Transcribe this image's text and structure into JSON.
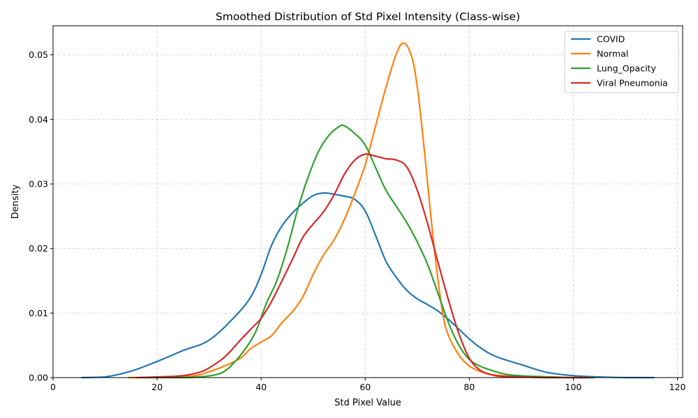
{
  "chart_data": {
    "type": "line",
    "title": "Smoothed Distribution of Std Pixel Intensity (Class-wise)",
    "xlabel": "Std Pixel Value",
    "ylabel": "Density",
    "xlim": [
      0,
      121
    ],
    "ylim": [
      0,
      0.0545
    ],
    "xticks": [
      0,
      20,
      40,
      60,
      80,
      100,
      120
    ],
    "xtick_labels": [
      "0",
      "20",
      "40",
      "60",
      "80",
      "100",
      "120"
    ],
    "yticks": [
      0,
      0.01,
      0.02,
      0.03,
      0.04,
      0.05
    ],
    "ytick_labels": [
      "0.00",
      "0.01",
      "0.02",
      "0.03",
      "0.04",
      "0.05"
    ],
    "grid": true,
    "legend_position": "top-right",
    "series": [
      {
        "name": "COVID",
        "color": "#1f77b4",
        "points": [
          [
            5.5,
            0
          ],
          [
            10,
            0.0001
          ],
          [
            15,
            0.001
          ],
          [
            20,
            0.0025
          ],
          [
            25,
            0.0042
          ],
          [
            30,
            0.0058
          ],
          [
            35,
            0.0095
          ],
          [
            38,
            0.0125
          ],
          [
            40,
            0.016
          ],
          [
            42,
            0.0205
          ],
          [
            44,
            0.0235
          ],
          [
            46,
            0.0255
          ],
          [
            48,
            0.027
          ],
          [
            50,
            0.0282
          ],
          [
            52,
            0.0286
          ],
          [
            54,
            0.0284
          ],
          [
            56,
            0.0281
          ],
          [
            58,
            0.0276
          ],
          [
            60,
            0.0258
          ],
          [
            62,
            0.022
          ],
          [
            64,
            0.018
          ],
          [
            66,
            0.0155
          ],
          [
            68,
            0.0135
          ],
          [
            70,
            0.0122
          ],
          [
            72,
            0.0113
          ],
          [
            74,
            0.0103
          ],
          [
            76,
            0.009
          ],
          [
            78,
            0.0075
          ],
          [
            80,
            0.006
          ],
          [
            82,
            0.0047
          ],
          [
            85,
            0.0033
          ],
          [
            90,
            0.002
          ],
          [
            95,
            0.0008
          ],
          [
            100,
            0.0003
          ],
          [
            105,
            0.0001
          ],
          [
            110,
            0
          ],
          [
            115.5,
            0
          ]
        ]
      },
      {
        "name": "Normal",
        "color": "#ff7f0e",
        "points": [
          [
            14.5,
            0
          ],
          [
            20,
            0
          ],
          [
            25,
            0.0001
          ],
          [
            28,
            0.0004
          ],
          [
            30,
            0.0009
          ],
          [
            33,
            0.0018
          ],
          [
            36,
            0.003
          ],
          [
            38,
            0.0045
          ],
          [
            40,
            0.0055
          ],
          [
            42,
            0.0065
          ],
          [
            44,
            0.0085
          ],
          [
            46,
            0.0102
          ],
          [
            48,
            0.0125
          ],
          [
            50,
            0.016
          ],
          [
            52,
            0.019
          ],
          [
            54,
            0.0213
          ],
          [
            56,
            0.0245
          ],
          [
            58,
            0.0285
          ],
          [
            60,
            0.033
          ],
          [
            62,
            0.039
          ],
          [
            64,
            0.045
          ],
          [
            66,
            0.0502
          ],
          [
            67.5,
            0.0518
          ],
          [
            69,
            0.0495
          ],
          [
            70,
            0.045
          ],
          [
            71,
            0.038
          ],
          [
            72,
            0.03
          ],
          [
            73,
            0.022
          ],
          [
            74,
            0.015
          ],
          [
            75,
            0.0095
          ],
          [
            76,
            0.0065
          ],
          [
            78,
            0.0035
          ],
          [
            80,
            0.0018
          ],
          [
            82,
            0.001
          ],
          [
            84,
            0.0005
          ],
          [
            88,
            0.0002
          ],
          [
            95,
            0
          ],
          [
            103.5,
            0
          ]
        ]
      },
      {
        "name": "Lung_Opacity",
        "color": "#2ca02c",
        "points": [
          [
            17,
            0
          ],
          [
            25,
            0
          ],
          [
            28,
            0.0001
          ],
          [
            31,
            0.0004
          ],
          [
            33,
            0.001
          ],
          [
            35,
            0.0025
          ],
          [
            37,
            0.0045
          ],
          [
            39,
            0.0072
          ],
          [
            41,
            0.0115
          ],
          [
            43,
            0.015
          ],
          [
            45,
            0.02
          ],
          [
            47,
            0.026
          ],
          [
            49,
            0.031
          ],
          [
            51,
            0.035
          ],
          [
            53,
            0.0375
          ],
          [
            55,
            0.0389
          ],
          [
            56,
            0.039
          ],
          [
            58,
            0.0378
          ],
          [
            60,
            0.036
          ],
          [
            62,
            0.0325
          ],
          [
            64,
            0.029
          ],
          [
            66,
            0.0265
          ],
          [
            68,
            0.024
          ],
          [
            70,
            0.021
          ],
          [
            72,
            0.0175
          ],
          [
            74,
            0.013
          ],
          [
            76,
            0.0085
          ],
          [
            78,
            0.005
          ],
          [
            80,
            0.0028
          ],
          [
            82,
            0.0018
          ],
          [
            84,
            0.0012
          ],
          [
            86,
            0.0007
          ],
          [
            88,
            0.0004
          ],
          [
            92,
            0.0002
          ],
          [
            96,
            0.0001
          ],
          [
            100,
            0
          ],
          [
            104,
            0
          ]
        ]
      },
      {
        "name": "Viral Pneumonia",
        "color": "#d62728",
        "points": [
          [
            16,
            0
          ],
          [
            20,
            0.0001
          ],
          [
            25,
            0.0003
          ],
          [
            28,
            0.0008
          ],
          [
            30,
            0.0015
          ],
          [
            33,
            0.0032
          ],
          [
            36,
            0.0058
          ],
          [
            38,
            0.0075
          ],
          [
            40,
            0.0092
          ],
          [
            42,
            0.0118
          ],
          [
            44,
            0.015
          ],
          [
            46,
            0.0183
          ],
          [
            48,
            0.0217
          ],
          [
            50,
            0.0238
          ],
          [
            52,
            0.0257
          ],
          [
            54,
            0.0283
          ],
          [
            56,
            0.0315
          ],
          [
            58,
            0.0337
          ],
          [
            60,
            0.0346
          ],
          [
            62,
            0.0343
          ],
          [
            64,
            0.0339
          ],
          [
            66,
            0.0337
          ],
          [
            68,
            0.0326
          ],
          [
            70,
            0.029
          ],
          [
            72,
            0.0238
          ],
          [
            74,
            0.0178
          ],
          [
            76,
            0.012
          ],
          [
            78,
            0.0068
          ],
          [
            80,
            0.003
          ],
          [
            82,
            0.0012
          ],
          [
            84,
            0.0005
          ],
          [
            86,
            0.0002
          ],
          [
            90,
            0.0001
          ],
          [
            95,
            0
          ],
          [
            103,
            0
          ]
        ]
      }
    ]
  }
}
